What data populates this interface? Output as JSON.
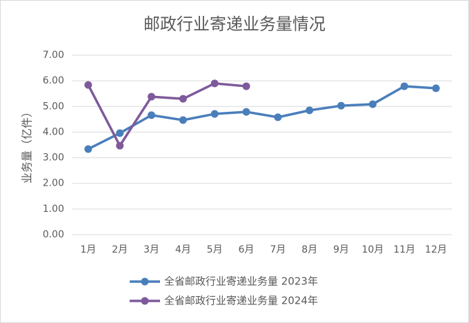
{
  "chart_data": {
    "type": "line",
    "title": "邮政行业寄递业务量情况",
    "y_label": "业务量（亿件）",
    "categories": [
      "1月",
      "2月",
      "3月",
      "4月",
      "5月",
      "6月",
      "7月",
      "8月",
      "9月",
      "10月",
      "11月",
      "12月"
    ],
    "series": [
      {
        "name": "全省邮政行业寄递业务量 2023年",
        "color": "#4a7ebb",
        "values": [
          3.34,
          3.96,
          4.66,
          4.47,
          4.71,
          4.79,
          4.58,
          4.85,
          5.03,
          5.09,
          5.79,
          5.71
        ]
      },
      {
        "name": "全省邮政行业寄递业务量 2024年",
        "color": "#7e5a9b",
        "values": [
          5.84,
          3.47,
          5.38,
          5.3,
          5.9,
          5.79,
          null,
          null,
          null,
          null,
          null,
          null
        ]
      }
    ],
    "ylim": [
      0,
      7
    ],
    "yticks": [
      {
        "value": 0,
        "label": "0.00"
      },
      {
        "value": 1,
        "label": "1.00"
      },
      {
        "value": 2,
        "label": "2.00"
      },
      {
        "value": 3,
        "label": "3.00"
      },
      {
        "value": 4,
        "label": "4.00"
      },
      {
        "value": 5,
        "label": "5.00"
      },
      {
        "value": 6,
        "label": "6.00"
      },
      {
        "value": 7,
        "label": "7.00"
      }
    ],
    "grid": true
  }
}
